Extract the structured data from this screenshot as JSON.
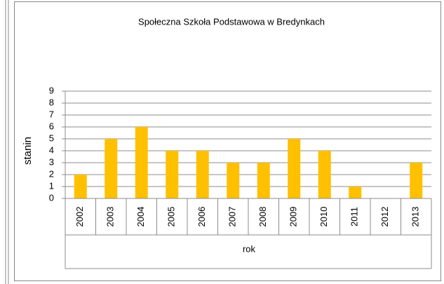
{
  "chart_data": {
    "type": "bar",
    "title": "Społeczna Szkoła Podstawowa w Bredynkach",
    "x_label": "rok",
    "y_label": "stanin",
    "categories": [
      "2002",
      "2003",
      "2004",
      "2005",
      "2006",
      "2007",
      "2008",
      "2009",
      "2010",
      "2011",
      "2012",
      "2013"
    ],
    "values": [
      2,
      5,
      6,
      4,
      4,
      3,
      3,
      5,
      4,
      1,
      null,
      3
    ],
    "color": "#ffc000",
    "ylim": [
      0,
      9
    ],
    "yticks": [
      0,
      1,
      2,
      3,
      4,
      5,
      6,
      7,
      8,
      9
    ],
    "grid": true
  }
}
